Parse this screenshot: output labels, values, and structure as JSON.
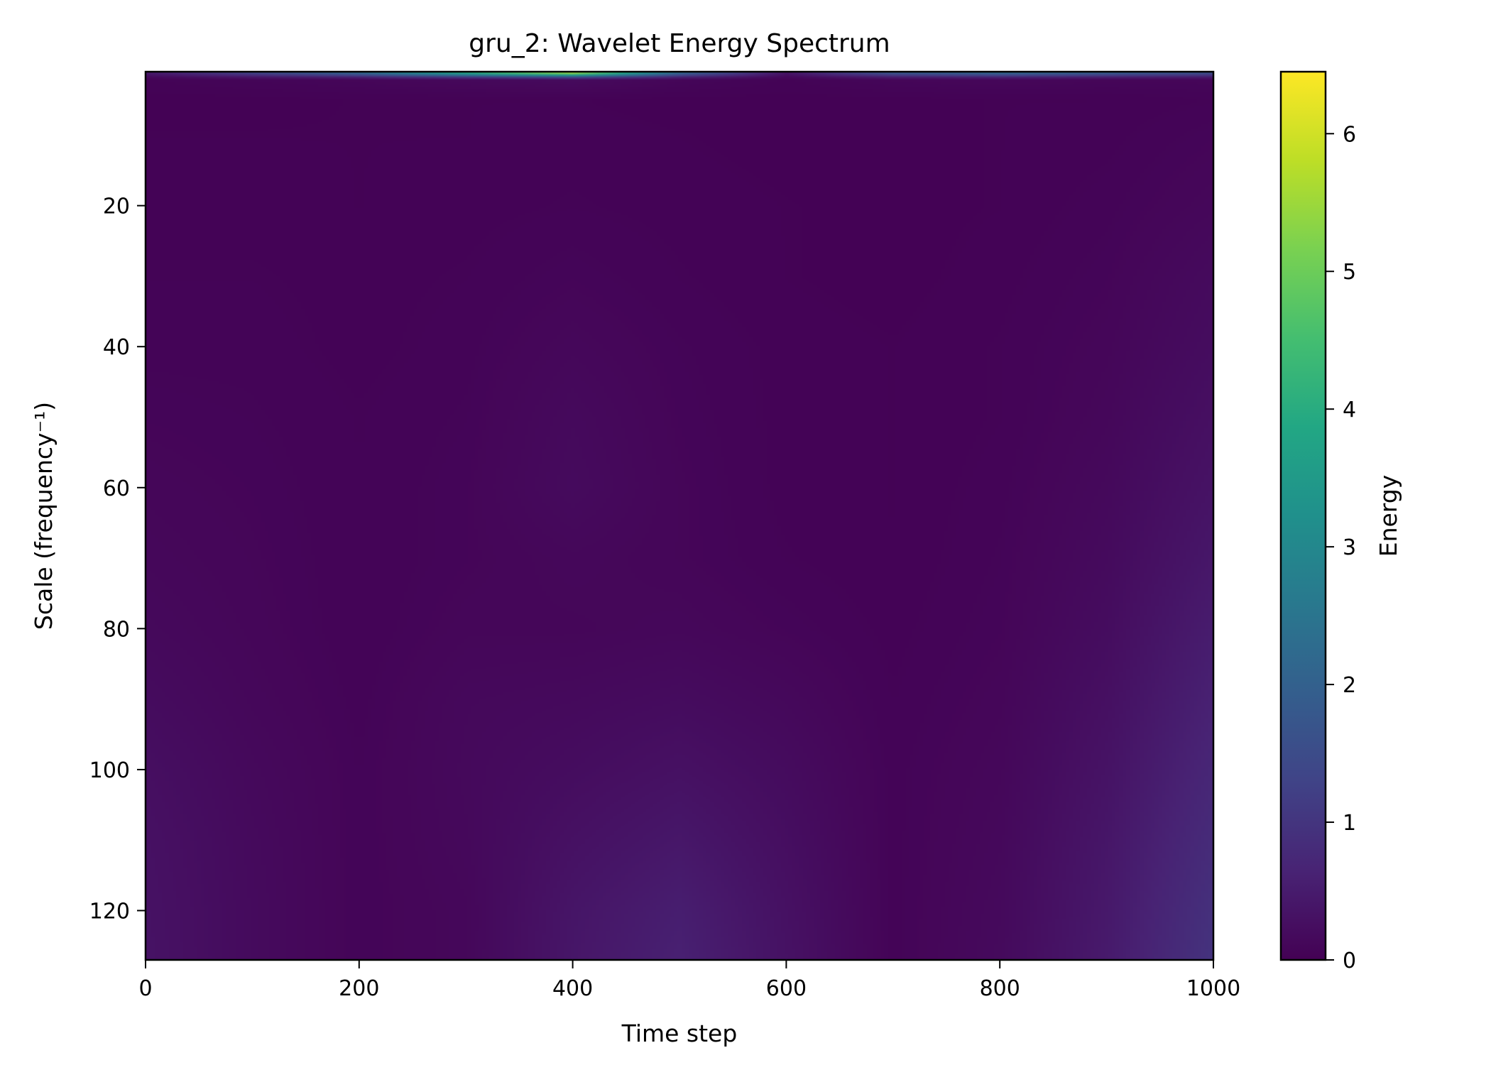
{
  "chart_data": {
    "type": "heatmap",
    "title": "gru_2: Wavelet Energy Spectrum",
    "xlabel": "Time step",
    "ylabel": "Scale (frequency⁻¹)",
    "xlim": [
      0,
      1000
    ],
    "ylim": [
      127,
      1
    ],
    "y_inverted": true,
    "x_ticks": [
      0,
      200,
      400,
      600,
      800,
      1000
    ],
    "x_tick_labels": [
      "0",
      "200",
      "400",
      "600",
      "800",
      "1000"
    ],
    "y_ticks": [
      20,
      40,
      60,
      80,
      100,
      120
    ],
    "y_tick_labels": [
      "20",
      "40",
      "60",
      "80",
      "100",
      "120"
    ],
    "colormap": "viridis",
    "colorbar": {
      "label": "Energy",
      "range": [
        0,
        6.45
      ],
      "ticks": [
        0,
        1,
        2,
        3,
        4,
        5,
        6
      ],
      "tick_labels": [
        "0",
        "1",
        "2",
        "3",
        "4",
        "5",
        "6"
      ]
    },
    "grid": false,
    "time_steps": [
      0,
      100,
      200,
      300,
      400,
      500,
      600,
      700,
      800,
      900,
      1000
    ],
    "scales": [
      1,
      2,
      5,
      10,
      20,
      30,
      40,
      50,
      60,
      70,
      80,
      90,
      100,
      110,
      120,
      127
    ],
    "energy": [
      [
        0.5,
        1.5,
        2.5,
        4.5,
        6.4,
        2.5,
        0.4,
        2.0,
        2.5,
        2.2,
        1.8
      ],
      [
        0.05,
        0.08,
        0.1,
        0.15,
        0.2,
        0.1,
        0.05,
        0.1,
        0.12,
        0.1,
        0.1
      ],
      [
        0.02,
        0.02,
        0.03,
        0.03,
        0.03,
        0.02,
        0.02,
        0.02,
        0.03,
        0.03,
        0.05
      ],
      [
        0.03,
        0.03,
        0.03,
        0.03,
        0.04,
        0.03,
        0.02,
        0.02,
        0.03,
        0.04,
        0.08
      ],
      [
        0.04,
        0.04,
        0.03,
        0.04,
        0.05,
        0.04,
        0.03,
        0.02,
        0.03,
        0.06,
        0.12
      ],
      [
        0.05,
        0.05,
        0.04,
        0.05,
        0.08,
        0.05,
        0.03,
        0.02,
        0.04,
        0.08,
        0.18
      ],
      [
        0.06,
        0.06,
        0.04,
        0.06,
        0.12,
        0.07,
        0.04,
        0.03,
        0.05,
        0.1,
        0.22
      ],
      [
        0.08,
        0.07,
        0.05,
        0.07,
        0.16,
        0.08,
        0.04,
        0.03,
        0.05,
        0.12,
        0.28
      ],
      [
        0.1,
        0.08,
        0.05,
        0.08,
        0.18,
        0.09,
        0.04,
        0.03,
        0.06,
        0.15,
        0.34
      ],
      [
        0.12,
        0.09,
        0.05,
        0.08,
        0.12,
        0.09,
        0.05,
        0.03,
        0.07,
        0.18,
        0.42
      ],
      [
        0.15,
        0.1,
        0.05,
        0.1,
        0.1,
        0.12,
        0.08,
        0.04,
        0.08,
        0.22,
        0.52
      ],
      [
        0.2,
        0.12,
        0.06,
        0.14,
        0.16,
        0.2,
        0.14,
        0.05,
        0.1,
        0.28,
        0.62
      ],
      [
        0.26,
        0.15,
        0.07,
        0.15,
        0.22,
        0.3,
        0.2,
        0.06,
        0.12,
        0.34,
        0.72
      ],
      [
        0.3,
        0.17,
        0.07,
        0.14,
        0.3,
        0.42,
        0.25,
        0.06,
        0.14,
        0.4,
        0.82
      ],
      [
        0.32,
        0.18,
        0.07,
        0.12,
        0.38,
        0.55,
        0.3,
        0.06,
        0.16,
        0.45,
        0.92
      ],
      [
        0.33,
        0.18,
        0.07,
        0.12,
        0.4,
        0.6,
        0.32,
        0.06,
        0.17,
        0.48,
        0.97
      ]
    ]
  }
}
